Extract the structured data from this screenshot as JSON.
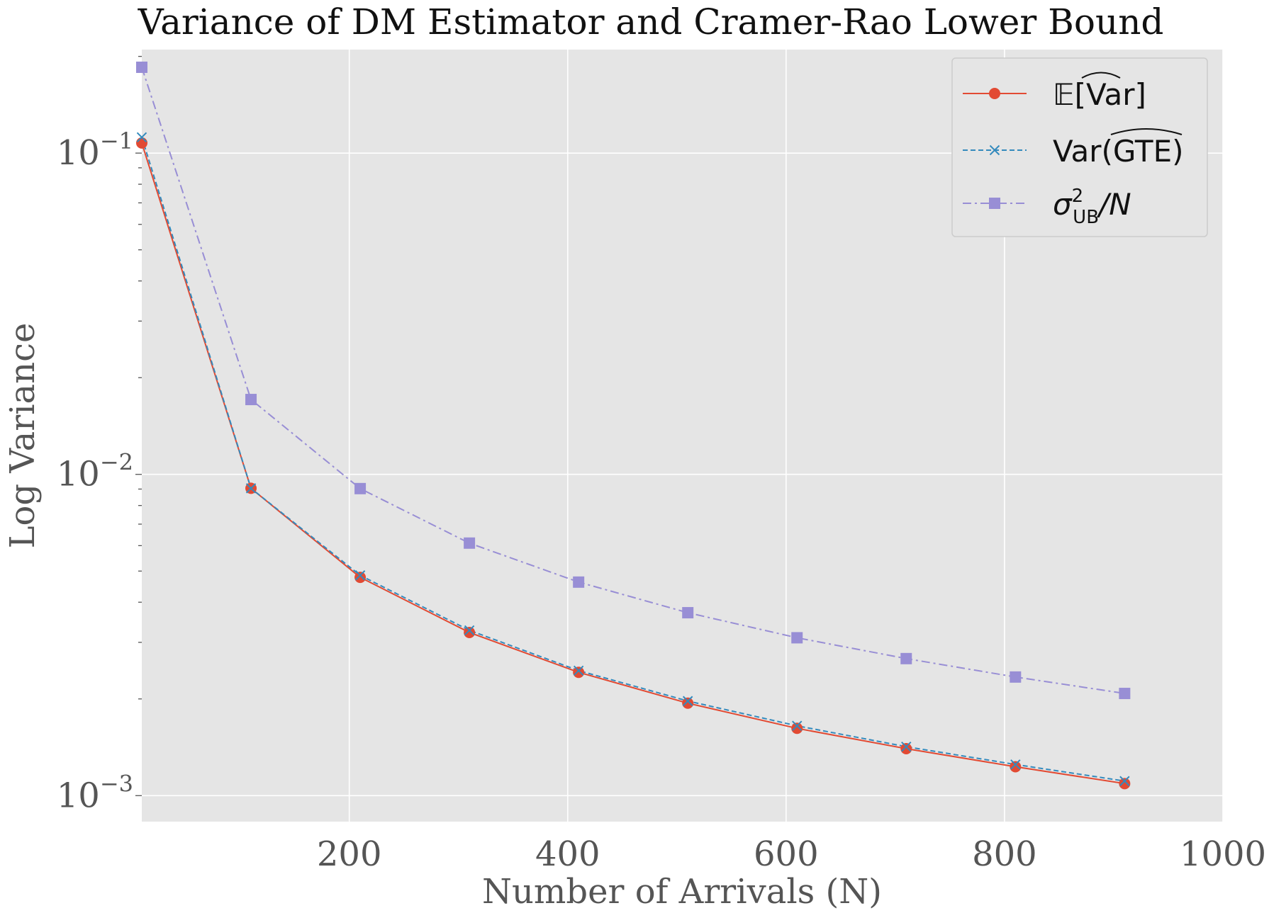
{
  "chart_data": {
    "type": "line",
    "title": "Variance of DM Estimator and Cramer-Rao Lower Bound",
    "xlabel": "Number of Arrivals (N)",
    "ylabel": "Log Variance",
    "xlim": [
      10,
      1000
    ],
    "ylim": [
      0.00083,
      0.21
    ],
    "yscale": "log",
    "grid": true,
    "legend_position": "top-right",
    "x_ticks": [
      200,
      400,
      600,
      800,
      1000
    ],
    "y_ticks": [
      {
        "value": 0.1,
        "base": "10",
        "exp": "−1"
      },
      {
        "value": 0.01,
        "base": "10",
        "exp": "−2"
      },
      {
        "value": 0.001,
        "base": "10",
        "exp": "−3"
      }
    ],
    "x": [
      10,
      110,
      210,
      310,
      410,
      510,
      610,
      710,
      810,
      910
    ],
    "series": [
      {
        "name": "E[Var-hat]",
        "legend_parts": {
          "bb": "𝔼",
          "open": "[",
          "inner": "Var",
          "close": "]"
        },
        "color": "#E24A33",
        "marker": "circle",
        "linestyle": "solid",
        "values": [
          0.1075,
          0.00905,
          0.00478,
          0.00322,
          0.00242,
          0.00194,
          0.00162,
          0.0014,
          0.00123,
          0.00109
        ]
      },
      {
        "name": "Var(GTE-hat)",
        "legend_parts": {
          "pre": "Var(",
          "inner": "GTE",
          "post": ")"
        },
        "color": "#348ABD",
        "marker": "x",
        "linestyle": "dashed",
        "values": [
          0.112,
          0.00905,
          0.00485,
          0.00327,
          0.00245,
          0.00197,
          0.00165,
          0.00142,
          0.00125,
          0.00111
        ]
      },
      {
        "name": "sigma_UB^2 / N",
        "legend_parts": {
          "sym": "σ",
          "sup": "2",
          "sub": "UB",
          "post": "/N"
        },
        "color": "#988ED5",
        "marker": "square",
        "linestyle": "dashdot",
        "values": [
          0.185,
          0.0171,
          0.00903,
          0.00611,
          0.00462,
          0.00371,
          0.0031,
          0.00267,
          0.00234,
          0.00208
        ]
      }
    ]
  }
}
